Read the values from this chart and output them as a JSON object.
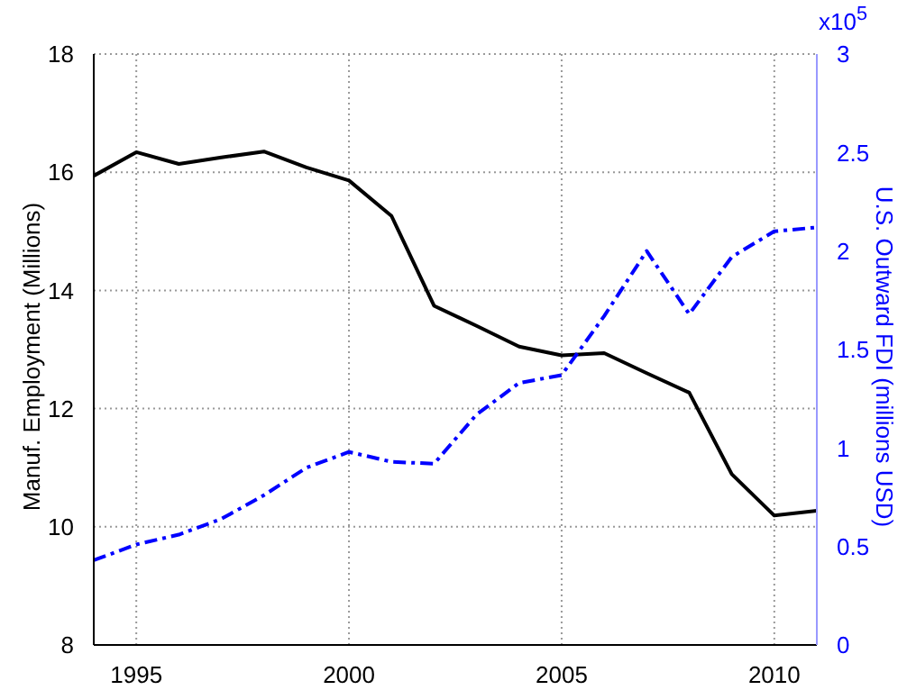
{
  "chart_data": {
    "type": "line",
    "x": [
      1994,
      1995,
      1996,
      1997,
      1998,
      1999,
      2000,
      2001,
      2002,
      2003,
      2004,
      2005,
      2006,
      2007,
      2008,
      2009,
      2010,
      2011
    ],
    "series": [
      {
        "color": "#000000",
        "line_style": "solid",
        "values": [
          15.94,
          16.34,
          16.14,
          16.25,
          16.35,
          16.08,
          15.86,
          15.26,
          13.74,
          13.4,
          13.05,
          12.9,
          12.94,
          12.6,
          12.27,
          10.89,
          10.19,
          10.27
        ]
      },
      {
        "color": "#0000ff",
        "line_style": "dashed",
        "axis": "y2",
        "values": [
          0.43,
          0.51,
          0.56,
          0.64,
          0.76,
          0.9,
          0.98,
          0.93,
          0.92,
          1.17,
          1.33,
          1.37,
          1.67,
          2.0,
          1.68,
          1.97,
          2.1,
          2.12
        ]
      }
    ],
    "xlim": [
      1994,
      2011
    ],
    "xticks": [
      1995,
      2000,
      2005,
      2010
    ],
    "ylim": [
      8,
      18
    ],
    "yticks": [
      8,
      10,
      12,
      14,
      16,
      18
    ],
    "y2lim": [
      0,
      3
    ],
    "y2ticks": [
      0,
      0.5,
      1,
      1.5,
      2,
      2.5,
      3
    ],
    "ylabel": "Manuf. Employment (Millions)",
    "y2label": "U.S. Outward FDI (millions USD)",
    "annotations": [
      "x10$^{5}$"
    ],
    "grid": true,
    "marker": "none"
  }
}
